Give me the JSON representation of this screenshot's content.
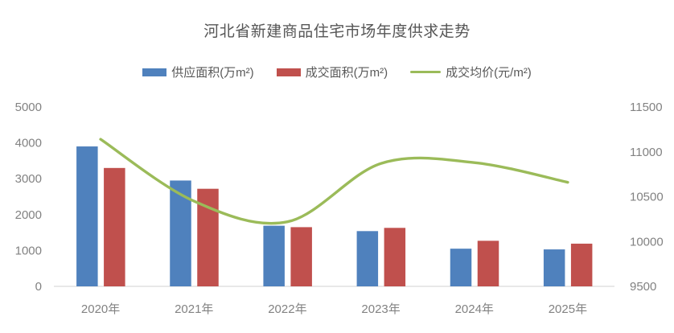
{
  "title": "河北省新建商品住宅市场年度供求走势",
  "legend": {
    "items": [
      {
        "label": "供应面积(万m²)",
        "color": "#4F81BD",
        "swatch": "rect"
      },
      {
        "label": "成交面积(万m²)",
        "color": "#C0504D",
        "swatch": "rect"
      },
      {
        "label": "成交均价(元/m²)",
        "color": "#9BBB59",
        "swatch": "line"
      }
    ]
  },
  "chart_data": {
    "type": "bar",
    "subtype": "combo-bar-line",
    "title": "河北省新建商品住宅市场年度供求走势",
    "categories": [
      "2020年",
      "2021年",
      "2022年",
      "2023年",
      "2024年",
      "2025年"
    ],
    "series": [
      {
        "key": "supply",
        "name": "供应面积(万m²)",
        "type": "bar",
        "axis": "left",
        "color": "#4F81BD",
        "values": [
          3900,
          2950,
          1690,
          1540,
          1050,
          1030
        ]
      },
      {
        "key": "deal",
        "name": "成交面积(万m²)",
        "type": "bar",
        "axis": "left",
        "color": "#C0504D",
        "values": [
          3300,
          2720,
          1650,
          1630,
          1270,
          1190
        ]
      },
      {
        "key": "price",
        "name": "成交均价(元/m²)",
        "type": "line",
        "axis": "right",
        "color": "#9BBB59",
        "values": [
          11140,
          10450,
          10220,
          10870,
          10880,
          10660
        ]
      }
    ],
    "left_axis": {
      "min": 0,
      "max": 5000,
      "step": 1000,
      "ticks": [
        0,
        1000,
        2000,
        3000,
        4000,
        5000
      ]
    },
    "right_axis": {
      "min": 9500,
      "max": 11500,
      "step": 500,
      "ticks": [
        9500,
        10000,
        10500,
        11000,
        11500
      ]
    },
    "legend_position": "top",
    "gridlines": false,
    "smoothed_line": true,
    "baseline_color": "#D9D9D9",
    "tick_color": "#828282"
  }
}
